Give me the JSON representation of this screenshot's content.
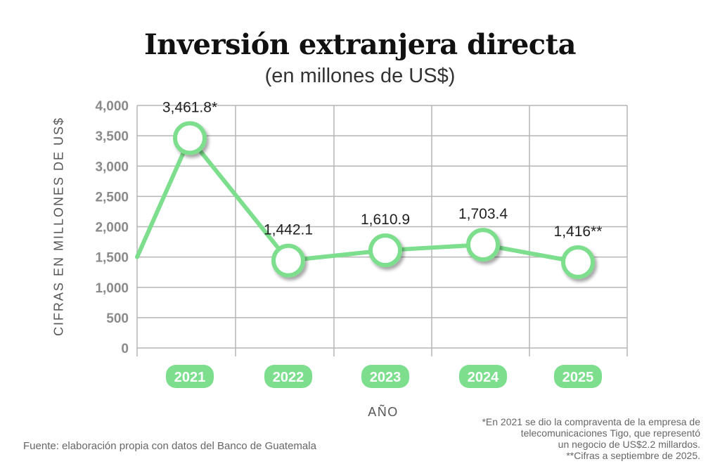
{
  "chart_data": {
    "type": "line",
    "title": "Inversión extranjera directa",
    "subtitle": "(en millones de US$)",
    "xlabel": "AÑO",
    "ylabel": "CIFRAS EN MILLONES DE US$",
    "categories": [
      "2021",
      "2022",
      "2023",
      "2024",
      "2025"
    ],
    "values": [
      3461.8,
      1442.1,
      1610.9,
      1703.4,
      1416
    ],
    "data_labels": [
      "3,461.8*",
      "1,442.1",
      "1,610.9",
      "1,703.4",
      "1,416**"
    ],
    "line_start_value": 1500,
    "yticks": [
      0,
      500,
      1000,
      1500,
      2000,
      2500,
      3000,
      3500,
      4000
    ],
    "ytick_labels": [
      "0",
      "500",
      "1,000",
      "1,500",
      "2,000",
      "2,500",
      "3,000",
      "3,500",
      "4,000"
    ],
    "ylim": [
      0,
      4000
    ],
    "grid": true,
    "colors": {
      "line": "#7ddf8e",
      "badge": "#7ddf8e",
      "marker_fill": "#ffffff",
      "grid": "#b5b5b5"
    }
  },
  "source": "Fuente: elaboración propia con datos del Banco de Guatemala",
  "notes": [
    "*En 2021 se dio la compraventa de la empresa de",
    "telecomunicaciones Tigo, que representó",
    "un negocio de US$2.2 millardos.",
    "**Cifras a septiembre de 2025."
  ]
}
